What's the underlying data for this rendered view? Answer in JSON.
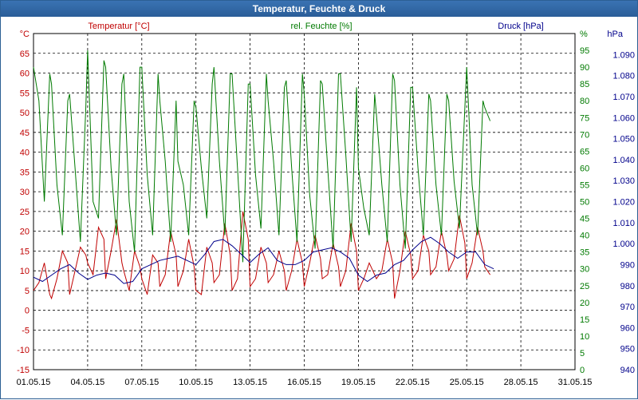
{
  "window": {
    "title": "Temperatur, Feuchte & Druck"
  },
  "colors": {
    "temperature": "#c00000",
    "humidity": "#007a00",
    "pressure": "#00008b",
    "grid": "#000000",
    "titlebar": "#2a5d98"
  },
  "chart_data": {
    "type": "line",
    "title": "Temperatur, Feuchte & Druck",
    "xlim": [
      "01.05.15",
      "31.05.15"
    ],
    "x_ticks": [
      "01.05.15",
      "04.05.15",
      "07.05.15",
      "10.05.15",
      "13.05.15",
      "16.05.15",
      "19.05.15",
      "22.05.15",
      "25.05.15",
      "28.05.15",
      "31.05.15"
    ],
    "grid": true,
    "axes": {
      "temperature": {
        "label": "Temperatur [°C]",
        "unit": "°C",
        "side": "left",
        "ylim": [
          -15,
          70
        ],
        "ticks": [
          "-15",
          "-10",
          "-5",
          "0",
          "5",
          "10",
          "15",
          "20",
          "25",
          "30",
          "35",
          "40",
          "45",
          "50",
          "55",
          "60",
          "65"
        ]
      },
      "humidity": {
        "label": "rel. Feuchte [%]",
        "unit": "%",
        "side": "right",
        "ylim": [
          0,
          100
        ],
        "ticks": [
          "0",
          "5",
          "10",
          "15",
          "20",
          "25",
          "30",
          "35",
          "40",
          "45",
          "50",
          "55",
          "60",
          "65",
          "70",
          "75",
          "80",
          "85",
          "90",
          "95"
        ]
      },
      "pressure": {
        "label": "Druck [hPa]",
        "unit": "hPa",
        "side": "right",
        "ylim": [
          940,
          1100
        ],
        "ticks": [
          "940",
          "950",
          "960",
          "970",
          "980",
          "990",
          "1.000",
          "1.010",
          "1.020",
          "1.030",
          "1.040",
          "1.050",
          "1.060",
          "1.070",
          "1.080",
          "1.090"
        ]
      }
    },
    "series": [
      {
        "axis": "temperature",
        "color": "#c00000",
        "x_days": [
          1.0,
          1.3,
          1.6,
          1.9,
          2.0,
          2.3,
          2.6,
          2.9,
          3.0,
          3.3,
          3.6,
          3.9,
          4.0,
          4.3,
          4.6,
          4.9,
          5.0,
          5.3,
          5.6,
          5.9,
          6.0,
          6.3,
          6.6,
          6.9,
          7.0,
          7.3,
          7.6,
          7.9,
          8.0,
          8.3,
          8.6,
          8.9,
          9.0,
          9.3,
          9.6,
          9.9,
          10.0,
          10.3,
          10.6,
          10.9,
          11.0,
          11.3,
          11.6,
          11.9,
          12.0,
          12.3,
          12.6,
          12.9,
          13.0,
          13.3,
          13.6,
          13.9,
          14.0,
          14.3,
          14.6,
          14.9,
          15.0,
          15.3,
          15.6,
          15.9,
          16.0,
          16.3,
          16.6,
          16.9,
          17.0,
          17.3,
          17.6,
          17.9,
          18.0,
          18.3,
          18.6,
          18.9,
          19.0,
          19.3,
          19.6,
          19.9,
          20.0,
          20.3,
          20.6,
          20.9,
          21.0,
          21.3,
          21.6,
          21.9,
          22.0,
          22.3,
          22.6,
          22.9,
          23.0,
          23.3,
          23.6,
          23.9,
          24.0,
          24.3,
          24.6,
          24.9,
          25.0,
          25.3,
          25.6,
          25.9,
          26.0,
          26.3
        ],
        "values": [
          5,
          7,
          12,
          4,
          3,
          8,
          15,
          12,
          4,
          10,
          16,
          14,
          12,
          9,
          21,
          18,
          8,
          15,
          23,
          12,
          10,
          5,
          15,
          11,
          8,
          4,
          14,
          12,
          6,
          9,
          20,
          14,
          6,
          10,
          18,
          11,
          5,
          4,
          16,
          12,
          7,
          9,
          22,
          14,
          5,
          8,
          25,
          18,
          6,
          8,
          16,
          12,
          7,
          9,
          15,
          10,
          5,
          10,
          18,
          12,
          6,
          12,
          19,
          13,
          8,
          9,
          17,
          11,
          6,
          10,
          22,
          15,
          5,
          8,
          12,
          9,
          8,
          10,
          18,
          12,
          3,
          10,
          20,
          14,
          8,
          10,
          19,
          15,
          9,
          11,
          20,
          14,
          10,
          13,
          24,
          17,
          8,
          12,
          21,
          15,
          11,
          9
        ]
      },
      {
        "axis": "humidity",
        "color": "#007a00",
        "x_days": [
          1.0,
          1.3,
          1.6,
          1.9,
          2.0,
          2.3,
          2.6,
          2.9,
          3.0,
          3.3,
          3.6,
          3.9,
          4.0,
          4.3,
          4.6,
          4.9,
          5.0,
          5.3,
          5.6,
          5.9,
          6.0,
          6.3,
          6.6,
          6.9,
          7.0,
          7.3,
          7.6,
          7.9,
          8.0,
          8.3,
          8.6,
          8.9,
          9.0,
          9.3,
          9.6,
          9.9,
          10.0,
          10.3,
          10.6,
          10.9,
          11.0,
          11.3,
          11.6,
          11.9,
          12.0,
          12.3,
          12.6,
          12.9,
          13.0,
          13.3,
          13.6,
          13.9,
          14.0,
          14.3,
          14.6,
          14.9,
          15.0,
          15.3,
          15.6,
          15.9,
          16.0,
          16.3,
          16.6,
          16.9,
          17.0,
          17.3,
          17.6,
          17.9,
          18.0,
          18.3,
          18.6,
          18.9,
          19.0,
          19.3,
          19.6,
          19.9,
          20.0,
          20.3,
          20.6,
          20.9,
          21.0,
          21.3,
          21.6,
          21.9,
          22.0,
          22.3,
          22.6,
          22.9,
          23.0,
          23.3,
          23.6,
          23.9,
          24.0,
          24.3,
          24.6,
          24.9,
          25.0,
          25.3,
          25.6,
          25.9,
          26.0,
          26.3
        ],
        "values": [
          90,
          80,
          50,
          88,
          85,
          55,
          40,
          80,
          82,
          60,
          38,
          78,
          95,
          50,
          45,
          92,
          90,
          60,
          40,
          85,
          88,
          50,
          35,
          90,
          90,
          58,
          40,
          88,
          80,
          62,
          38,
          80,
          62,
          55,
          40,
          80,
          78,
          60,
          45,
          85,
          90,
          62,
          40,
          88,
          88,
          60,
          32,
          85,
          85,
          58,
          42,
          88,
          80,
          62,
          40,
          84,
          86,
          60,
          38,
          88,
          82,
          52,
          36,
          86,
          85,
          60,
          36,
          88,
          88,
          64,
          38,
          84,
          60,
          48,
          40,
          82,
          76,
          55,
          38,
          88,
          86,
          55,
          36,
          84,
          84,
          60,
          40,
          82,
          80,
          55,
          40,
          82,
          80,
          56,
          42,
          78,
          90,
          55,
          40,
          80,
          78,
          74
        ]
      },
      {
        "axis": "pressure",
        "color": "#00008b",
        "x_days": [
          1.0,
          1.5,
          2.0,
          2.5,
          3.0,
          3.5,
          4.0,
          4.5,
          5.0,
          5.5,
          6.0,
          6.5,
          7.0,
          7.5,
          8.0,
          8.5,
          9.0,
          9.5,
          10.0,
          10.5,
          11.0,
          11.5,
          12.0,
          12.5,
          13.0,
          13.5,
          14.0,
          14.5,
          15.0,
          15.5,
          16.0,
          16.5,
          17.0,
          17.5,
          18.0,
          18.5,
          19.0,
          19.5,
          20.0,
          20.5,
          21.0,
          21.5,
          22.0,
          22.5,
          23.0,
          23.5,
          24.0,
          24.5,
          25.0,
          25.5,
          26.0,
          26.5
        ],
        "values": [
          984,
          982,
          985,
          988,
          990,
          986,
          983,
          985,
          986,
          985,
          981,
          982,
          988,
          990,
          992,
          993,
          994,
          992,
          990,
          995,
          1001,
          1002,
          999,
          995,
          991,
          995,
          998,
          992,
          990,
          990,
          992,
          996,
          997,
          998,
          996,
          993,
          985,
          982,
          985,
          986,
          990,
          992,
          997,
          1001,
          1003,
          1000,
          996,
          993,
          996,
          996,
          990,
          988
        ]
      }
    ]
  }
}
